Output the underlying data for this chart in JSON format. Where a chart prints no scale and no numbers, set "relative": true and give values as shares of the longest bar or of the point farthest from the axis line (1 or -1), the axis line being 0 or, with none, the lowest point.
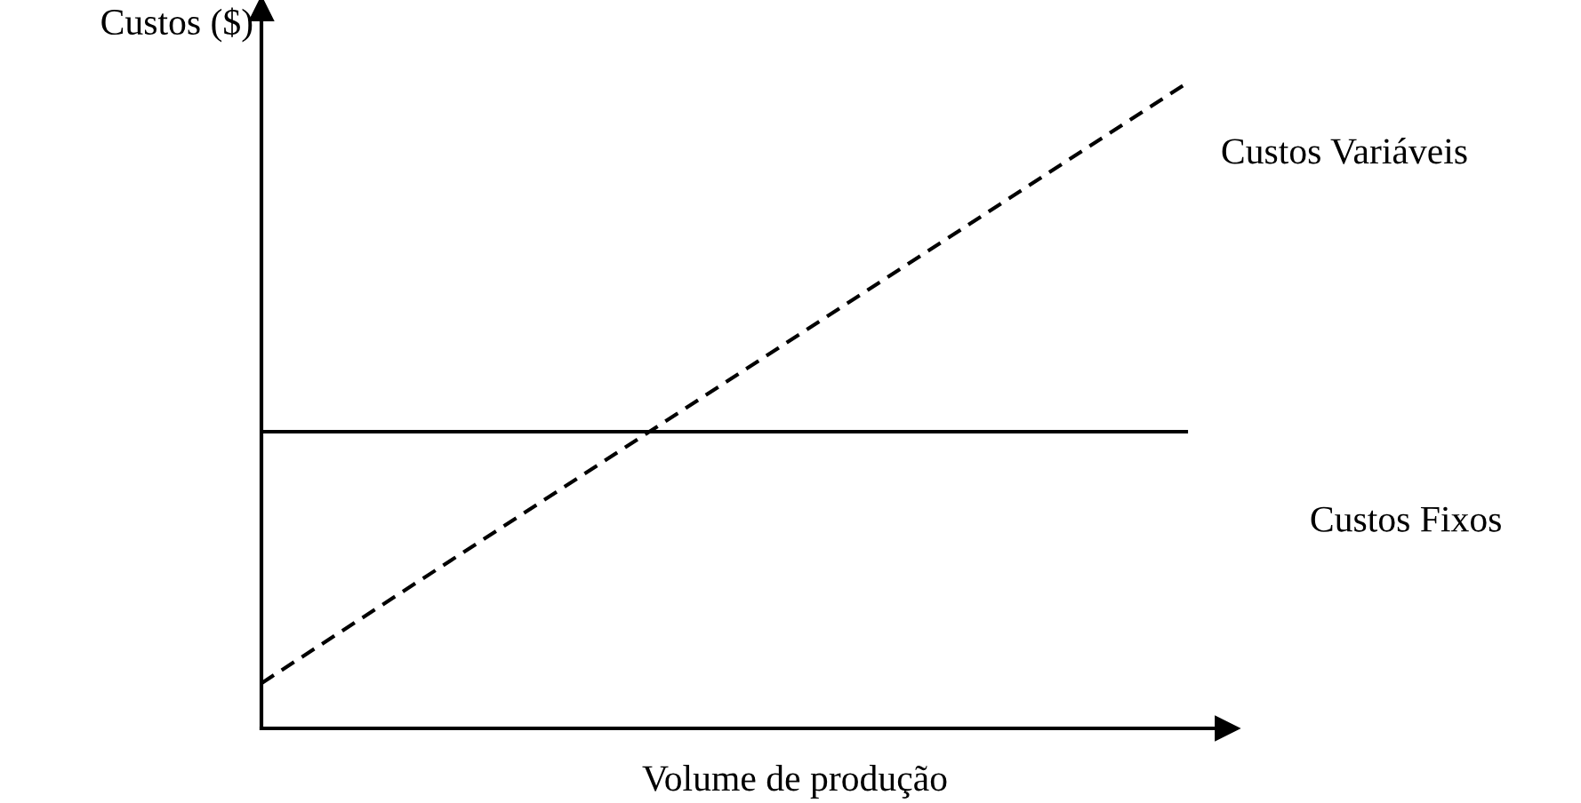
{
  "chart_data": {
    "type": "line",
    "relative": true,
    "xlabel": "Volume de produção",
    "ylabel": "Custos ($)",
    "categories": [
      null,
      null
    ],
    "series": [
      {
        "name": "Custos Variáveis",
        "color": "#000000",
        "values": [
          0.07,
          1
        ],
        "line_style": "dashed"
      },
      {
        "name": "Custos Fixos",
        "color": "#000000",
        "values": [
          0.46,
          0.46
        ],
        "line_style": "solid"
      }
    ],
    "grid": false,
    "legend": false,
    "marker": "none"
  }
}
